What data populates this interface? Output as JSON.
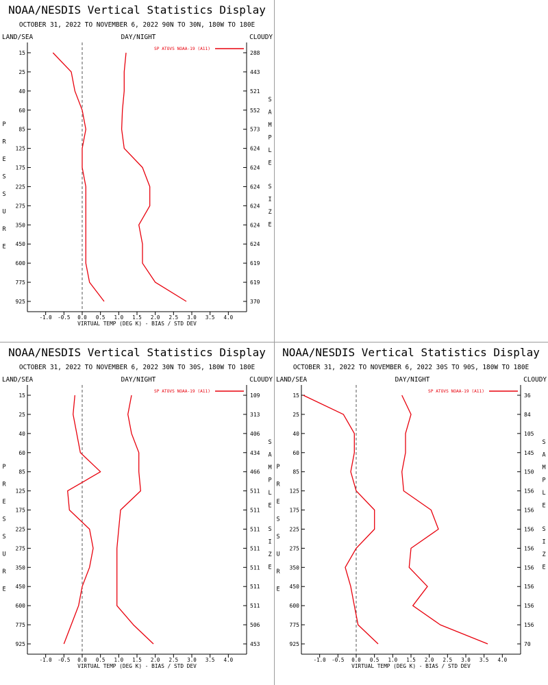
{
  "pages": {
    "title": "NOAA/NESDIS Vertical Statistics Display",
    "land_sea": "LAND/SEA",
    "day_night": "DAY/NIGHT",
    "cloudy": "CLOUDY",
    "left_axis_title": "PRESSURE",
    "right_axis_title_1": "SAMPLE",
    "right_axis_title_2": "SIZE",
    "xlabel": "VIRTUAL TEMP (DEG K) - BIAS / STD DEV",
    "legend": "SP ATOVS NOAA-19 (A11)"
  },
  "colors": {
    "series": "#e8000c",
    "axis": "#000000",
    "zero_line": "#555555"
  },
  "chart_data": [
    {
      "type": "line",
      "subtitle": "OCTOBER 31, 2022 TO NOVEMBER 6, 2022 90N TO 30N, 180W TO 180E",
      "pressure_levels": [
        15,
        25,
        40,
        60,
        85,
        125,
        175,
        225,
        275,
        350,
        450,
        600,
        775,
        925
      ],
      "x_ticks": [
        "-1.0",
        "-0.5",
        "0.0",
        "0.5",
        "1.0",
        "1.5",
        "2.0",
        "2.5",
        "3.0",
        "3.5",
        "4.0"
      ],
      "xlim": [
        -1.5,
        4.5
      ],
      "sample_size": [
        288,
        443,
        521,
        552,
        573,
        624,
        624,
        624,
        624,
        624,
        624,
        619,
        619,
        370
      ],
      "series": [
        {
          "name": "bias",
          "values": [
            -0.8,
            -0.3,
            -0.2,
            0.0,
            0.1,
            0.0,
            0.0,
            0.1,
            0.1,
            0.1,
            0.1,
            0.1,
            0.2,
            0.6
          ]
        },
        {
          "name": "std_dev",
          "values": [
            1.2,
            1.15,
            1.15,
            1.1,
            1.08,
            1.15,
            1.65,
            1.85,
            1.85,
            1.55,
            1.65,
            1.65,
            2.0,
            2.85
          ]
        }
      ]
    },
    {
      "type": "line",
      "subtitle": "OCTOBER 31, 2022 TO NOVEMBER 6, 2022 30N TO 30S, 180W TO 180E",
      "pressure_levels": [
        15,
        25,
        40,
        60,
        85,
        125,
        175,
        225,
        275,
        350,
        450,
        600,
        775,
        925
      ],
      "x_ticks": [
        "-1.0",
        "-0.5",
        "0.0",
        "0.5",
        "1.0",
        "1.5",
        "2.0",
        "2.5",
        "3.0",
        "3.5",
        "4.0"
      ],
      "xlim": [
        -1.5,
        4.5
      ],
      "sample_size": [
        109,
        313,
        406,
        434,
        466,
        511,
        511,
        511,
        511,
        511,
        511,
        511,
        506,
        453
      ],
      "series": [
        {
          "name": "bias",
          "values": [
            -0.2,
            -0.25,
            -0.15,
            -0.05,
            0.5,
            -0.4,
            -0.35,
            0.2,
            0.3,
            0.2,
            0.0,
            -0.1,
            -0.3,
            -0.5
          ]
        },
        {
          "name": "std_dev",
          "values": [
            1.35,
            1.25,
            1.35,
            1.55,
            1.55,
            1.6,
            1.05,
            1.0,
            0.95,
            0.95,
            0.95,
            0.95,
            1.4,
            1.95
          ]
        }
      ]
    },
    {
      "type": "line",
      "subtitle": "OCTOBER 31, 2022 TO NOVEMBER 6, 2022 30S TO 90S, 180W TO 180E",
      "pressure_levels": [
        15,
        25,
        40,
        60,
        85,
        125,
        175,
        225,
        275,
        350,
        450,
        600,
        775,
        925
      ],
      "x_ticks": [
        "-1.0",
        "-0.5",
        "0.0",
        "0.5",
        "1.0",
        "1.5",
        "2.0",
        "2.5",
        "3.0",
        "3.5",
        "4.0"
      ],
      "xlim": [
        -1.5,
        4.5
      ],
      "sample_size": [
        36,
        84,
        105,
        145,
        150,
        156,
        156,
        156,
        156,
        156,
        156,
        156,
        156,
        70
      ],
      "series": [
        {
          "name": "bias",
          "values": [
            -1.45,
            -0.35,
            -0.05,
            -0.05,
            -0.15,
            0.0,
            0.5,
            0.5,
            0.0,
            -0.3,
            -0.15,
            -0.05,
            0.05,
            0.6
          ]
        },
        {
          "name": "std_dev",
          "values": [
            1.25,
            1.5,
            1.35,
            1.35,
            1.25,
            1.3,
            2.05,
            2.25,
            1.5,
            1.45,
            1.95,
            1.55,
            2.3,
            3.6
          ]
        }
      ]
    }
  ]
}
